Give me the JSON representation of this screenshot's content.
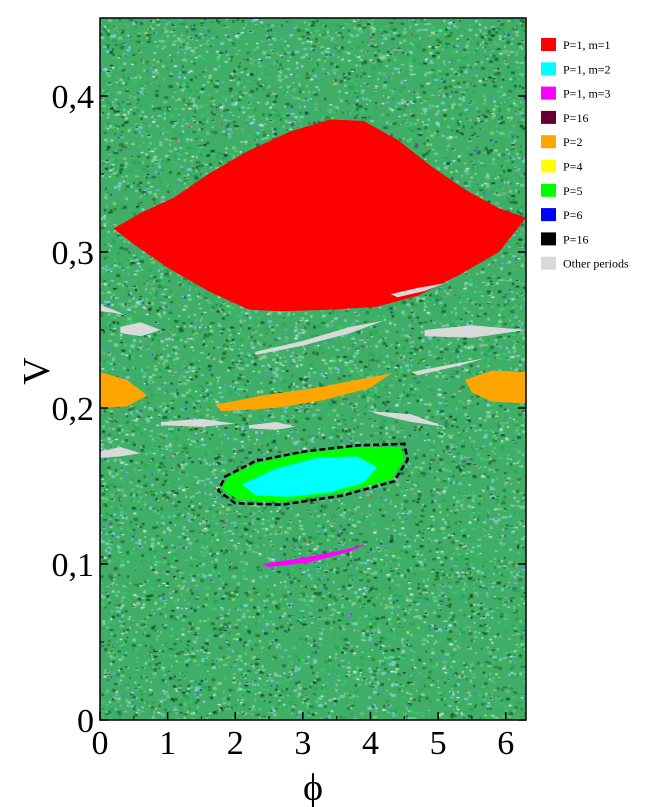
{
  "chart_data": {
    "type": "scatter",
    "title": "",
    "xlabel": "ϕ",
    "ylabel": "V",
    "xlim": [
      0,
      6.3
    ],
    "ylim": [
      0,
      0.45
    ],
    "x_ticks": [
      0,
      1,
      2,
      3,
      4,
      5,
      6
    ],
    "x_tick_labels": [
      "0",
      "1",
      "2",
      "3",
      "4",
      "5",
      "6"
    ],
    "y_ticks": [
      0,
      0.1,
      0.2,
      0.3,
      0.4
    ],
    "y_tick_labels": [
      "0",
      "0,1",
      "0,2",
      "0,3",
      "0,4"
    ],
    "grid": false,
    "legend_position": "right",
    "legend": [
      {
        "label": "P=1, m=1",
        "color": "#ff0000"
      },
      {
        "label": "P=1, m=2",
        "color": "#00ffff"
      },
      {
        "label": "P=1, m=3",
        "color": "#ff00ff"
      },
      {
        "label": "P=16",
        "color": "#660033"
      },
      {
        "label": "P=2",
        "color": "#ffa500"
      },
      {
        "label": "P=4",
        "color": "#ffff00"
      },
      {
        "label": "P=5",
        "color": "#00ff00"
      },
      {
        "label": "P=6",
        "color": "#0000ff"
      },
      {
        "label": "P=16",
        "color": "#000000"
      },
      {
        "label": "Other periods",
        "color": "#d9d9d9"
      }
    ],
    "background_colors": [
      "#33cc66",
      "#66bb88",
      "#22aa55",
      "#4fa0a0",
      "#88ccaa",
      "#2e7d32",
      "#6ad0d0",
      "#1f6f3f",
      "#7fd07f"
    ],
    "regions": [
      {
        "series": "P=1, m=1",
        "color": "#ff0000",
        "boundary": [
          [
            0.2,
            0.315
          ],
          [
            0.6,
            0.325
          ],
          [
            1.1,
            0.335
          ],
          [
            1.6,
            0.35
          ],
          [
            2.2,
            0.365
          ],
          [
            2.8,
            0.377
          ],
          [
            3.4,
            0.385
          ],
          [
            3.9,
            0.384
          ],
          [
            4.4,
            0.372
          ],
          [
            4.9,
            0.355
          ],
          [
            5.4,
            0.34
          ],
          [
            5.9,
            0.328
          ],
          [
            6.3,
            0.322
          ],
          [
            5.9,
            0.3
          ],
          [
            5.3,
            0.285
          ],
          [
            4.7,
            0.272
          ],
          [
            4.1,
            0.265
          ],
          [
            3.4,
            0.263
          ],
          [
            2.7,
            0.262
          ],
          [
            2.2,
            0.263
          ],
          [
            1.6,
            0.275
          ],
          [
            1.0,
            0.29
          ],
          [
            0.5,
            0.305
          ]
        ]
      },
      {
        "series": "Other periods",
        "color": "#d9d9d9",
        "boundary": [
          [
            0.0,
            0.266
          ],
          [
            0.2,
            0.263
          ],
          [
            0.4,
            0.259
          ],
          [
            0.2,
            0.261
          ],
          [
            0.0,
            0.262
          ]
        ]
      },
      {
        "series": "Other periods",
        "color": "#d9d9d9",
        "boundary": [
          [
            0.3,
            0.252
          ],
          [
            0.6,
            0.255
          ],
          [
            0.9,
            0.25
          ],
          [
            0.6,
            0.246
          ],
          [
            0.3,
            0.248
          ]
        ]
      },
      {
        "series": "Other periods",
        "color": "#d9d9d9",
        "boundary": [
          [
            2.3,
            0.236
          ],
          [
            3.0,
            0.243
          ],
          [
            3.7,
            0.252
          ],
          [
            4.2,
            0.256
          ],
          [
            3.7,
            0.248
          ],
          [
            3.0,
            0.24
          ],
          [
            2.3,
            0.234
          ]
        ]
      },
      {
        "series": "Other periods",
        "color": "#d9d9d9",
        "boundary": [
          [
            4.8,
            0.25
          ],
          [
            5.5,
            0.253
          ],
          [
            6.3,
            0.25
          ],
          [
            5.5,
            0.245
          ],
          [
            4.8,
            0.246
          ]
        ]
      },
      {
        "series": "Other periods",
        "color": "#d9d9d9",
        "boundary": [
          [
            4.3,
            0.273
          ],
          [
            4.7,
            0.277
          ],
          [
            5.1,
            0.28
          ],
          [
            4.8,
            0.275
          ],
          [
            4.4,
            0.271
          ]
        ]
      },
      {
        "series": "Other periods",
        "color": "#d9d9d9",
        "boundary": [
          [
            4.6,
            0.223
          ],
          [
            5.2,
            0.228
          ],
          [
            5.7,
            0.232
          ],
          [
            5.3,
            0.227
          ],
          [
            4.7,
            0.221
          ]
        ]
      },
      {
        "series": "Other periods",
        "color": "#d9d9d9",
        "boundary": [
          [
            4.0,
            0.198
          ],
          [
            4.6,
            0.196
          ],
          [
            5.1,
            0.188
          ],
          [
            4.6,
            0.191
          ],
          [
            4.1,
            0.196
          ]
        ]
      },
      {
        "series": "Other periods",
        "color": "#d9d9d9",
        "boundary": [
          [
            0.0,
            0.172
          ],
          [
            0.3,
            0.175
          ],
          [
            0.6,
            0.171
          ],
          [
            0.3,
            0.169
          ],
          [
            0.0,
            0.168
          ]
        ]
      },
      {
        "series": "Other periods",
        "color": "#d9d9d9",
        "boundary": [
          [
            0.9,
            0.191
          ],
          [
            1.5,
            0.193
          ],
          [
            2.0,
            0.19
          ],
          [
            1.5,
            0.188
          ],
          [
            0.9,
            0.189
          ]
        ]
      },
      {
        "series": "Other periods",
        "color": "#d9d9d9",
        "boundary": [
          [
            2.2,
            0.189
          ],
          [
            2.6,
            0.191
          ],
          [
            2.9,
            0.188
          ],
          [
            2.6,
            0.186
          ],
          [
            2.2,
            0.187
          ]
        ]
      },
      {
        "series": "P=2",
        "color": "#ffa500",
        "boundary": [
          [
            0.0,
            0.223
          ],
          [
            0.4,
            0.218
          ],
          [
            0.7,
            0.208
          ],
          [
            0.4,
            0.201
          ],
          [
            0.0,
            0.2
          ]
        ]
      },
      {
        "series": "P=2",
        "color": "#ffa500",
        "boundary": [
          [
            1.7,
            0.202
          ],
          [
            2.4,
            0.208
          ],
          [
            3.2,
            0.213
          ],
          [
            3.8,
            0.218
          ],
          [
            4.3,
            0.222
          ],
          [
            4.0,
            0.213
          ],
          [
            3.3,
            0.205
          ],
          [
            2.6,
            0.2
          ],
          [
            1.8,
            0.198
          ]
        ]
      },
      {
        "series": "P=2",
        "color": "#ffa500",
        "boundary": [
          [
            5.4,
            0.218
          ],
          [
            5.8,
            0.224
          ],
          [
            6.3,
            0.223
          ],
          [
            6.3,
            0.203
          ],
          [
            5.8,
            0.204
          ],
          [
            5.5,
            0.21
          ]
        ]
      },
      {
        "series": "P=16",
        "color": "#000000",
        "boundary": [
          [
            1.85,
            0.156
          ],
          [
            2.3,
            0.166
          ],
          [
            3.0,
            0.172
          ],
          [
            3.8,
            0.176
          ],
          [
            4.5,
            0.177
          ],
          [
            4.55,
            0.167
          ],
          [
            4.35,
            0.153
          ],
          [
            3.6,
            0.144
          ],
          [
            2.7,
            0.138
          ],
          [
            2.0,
            0.139
          ],
          [
            1.75,
            0.147
          ]
        ]
      },
      {
        "series": "P=5",
        "color": "#00ff00",
        "boundary": [
          [
            1.9,
            0.156
          ],
          [
            2.35,
            0.165
          ],
          [
            3.0,
            0.171
          ],
          [
            3.8,
            0.175
          ],
          [
            4.45,
            0.175
          ],
          [
            4.5,
            0.167
          ],
          [
            4.3,
            0.154
          ],
          [
            3.6,
            0.146
          ],
          [
            2.7,
            0.14
          ],
          [
            2.05,
            0.141
          ],
          [
            1.8,
            0.148
          ]
        ]
      },
      {
        "series": "P=1, m=2",
        "color": "#00ffff",
        "boundary": [
          [
            2.1,
            0.151
          ],
          [
            2.6,
            0.161
          ],
          [
            3.2,
            0.168
          ],
          [
            3.8,
            0.169
          ],
          [
            4.1,
            0.162
          ],
          [
            3.9,
            0.152
          ],
          [
            3.4,
            0.146
          ],
          [
            2.8,
            0.143
          ],
          [
            2.3,
            0.144
          ]
        ]
      },
      {
        "series": "P=1, m=3",
        "color": "#ff00ff",
        "boundary": [
          [
            2.4,
            0.1
          ],
          [
            3.0,
            0.104
          ],
          [
            3.6,
            0.109
          ],
          [
            3.95,
            0.113
          ],
          [
            3.7,
            0.108
          ],
          [
            3.1,
            0.101
          ],
          [
            2.5,
            0.098
          ]
        ]
      }
    ]
  }
}
